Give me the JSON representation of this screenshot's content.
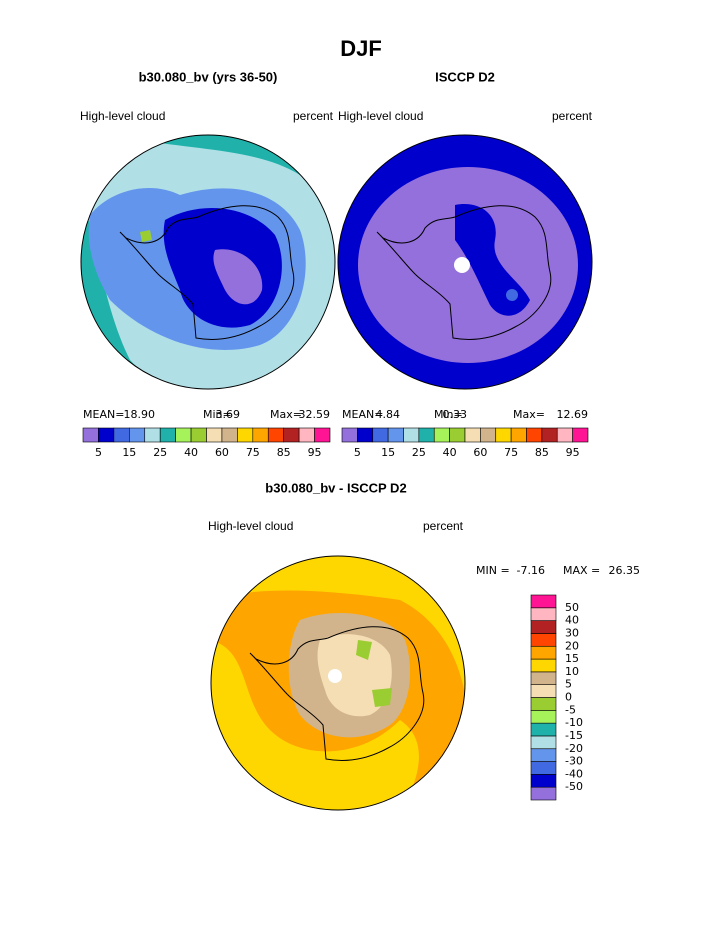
{
  "title": "DJF",
  "chart_data": [
    {
      "type": "contour",
      "title": "b30.080_bv (yrs 36-50)",
      "left_label": "High-level cloud",
      "right_label": "percent",
      "stats": [
        {
          "label": "MEAN=",
          "value": "18.90"
        },
        {
          "label": "Min=",
          "value": "3.69"
        },
        {
          "label": "Max=",
          "value": "32.59"
        }
      ],
      "colorbar": {
        "orientation": "horizontal",
        "colors": [
          "#9370db",
          "#0000cd",
          "#4169e1",
          "#6495ed",
          "#b0e0e6",
          "#20b2aa",
          "#a6f25a",
          "#9acd32",
          "#f5deb3",
          "#d2b48c",
          "#ffd700",
          "#ffa500",
          "#ff4500",
          "#b22222",
          "#ffb6c1",
          "#ff1493"
        ],
        "ticks": [
          5,
          15,
          25,
          40,
          60,
          75,
          85,
          95
        ]
      }
    },
    {
      "type": "contour",
      "title": "ISCCP D2",
      "left_label": "High-level cloud",
      "right_label": "percent",
      "stats": [
        {
          "label": "MEAN=",
          "value": "4.84"
        },
        {
          "label": "Min=",
          "value": "0.33"
        },
        {
          "label": "Max=",
          "value": "12.69"
        }
      ],
      "colorbar": {
        "orientation": "horizontal",
        "colors": [
          "#9370db",
          "#0000cd",
          "#4169e1",
          "#6495ed",
          "#b0e0e6",
          "#20b2aa",
          "#a6f25a",
          "#9acd32",
          "#f5deb3",
          "#d2b48c",
          "#ffd700",
          "#ffa500",
          "#ff4500",
          "#b22222",
          "#ffb6c1",
          "#ff1493"
        ],
        "ticks": [
          5,
          15,
          25,
          40,
          60,
          75,
          85,
          95
        ]
      }
    },
    {
      "type": "contour",
      "title": "b30.080_bv - ISCCP D2",
      "left_label": "High-level cloud",
      "right_label": "percent",
      "stats": [
        {
          "label": "MIN =",
          "value": "-7.16"
        },
        {
          "label": "MAX =",
          "value": "26.35"
        }
      ],
      "colorbar": {
        "orientation": "vertical",
        "colors": [
          "#9370db",
          "#0000cd",
          "#4169e1",
          "#6495ed",
          "#b0e0e6",
          "#20b2aa",
          "#a6f25a",
          "#9acd32",
          "#f5deb3",
          "#d2b48c",
          "#ffd700",
          "#ffa500",
          "#ff4500",
          "#b22222",
          "#ffb6c1",
          "#ff1493"
        ],
        "ticks": [
          -50,
          -40,
          -30,
          -20,
          -15,
          -10,
          -5,
          0,
          5,
          10,
          15,
          20,
          30,
          40,
          50
        ]
      }
    }
  ]
}
